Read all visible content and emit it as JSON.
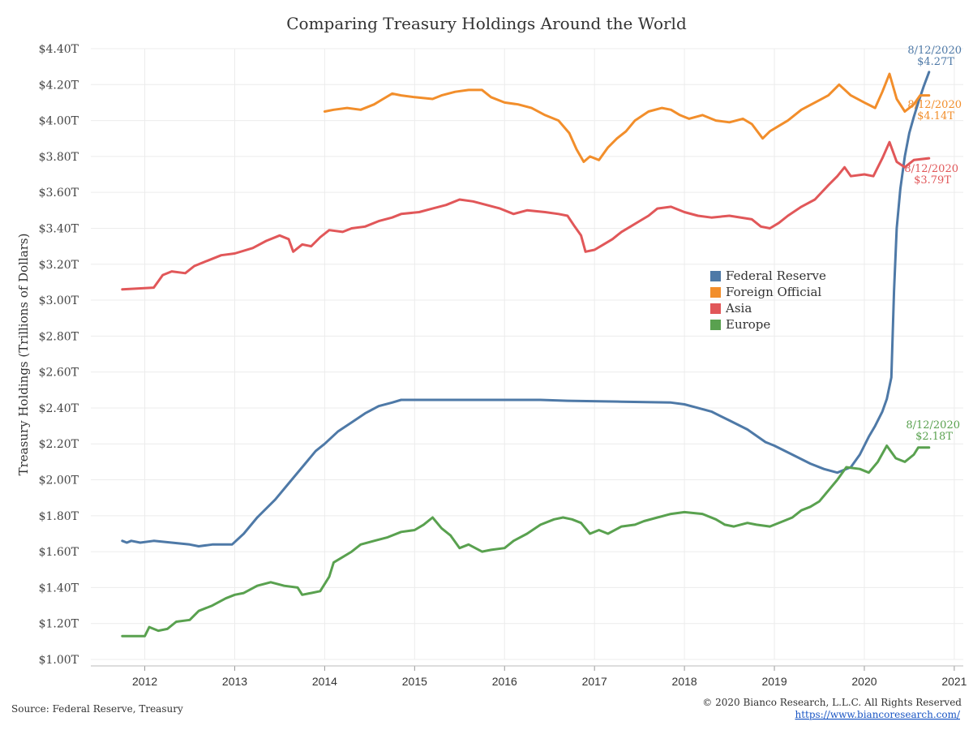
{
  "chart_data": {
    "type": "line",
    "title": "Comparing Treasury Holdings Around the World",
    "ylabel": "Treasury Holdings (Trillions of Dollars)",
    "xlabel": "",
    "xlim": [
      2011.4,
      2021.1
    ],
    "ylim": [
      1.0,
      4.4
    ],
    "grid": true,
    "legend_position": "center-right",
    "yticks": [
      1.0,
      1.2,
      1.4,
      1.6,
      1.8,
      2.0,
      2.2,
      2.4,
      2.6,
      2.8,
      3.0,
      3.2,
      3.4,
      3.6,
      3.8,
      4.0,
      4.2,
      4.4
    ],
    "ytick_labels": [
      "$1.00T",
      "$1.20T",
      "$1.40T",
      "$1.60T",
      "$1.80T",
      "$2.00T",
      "$2.20T",
      "$2.40T",
      "$2.60T",
      "$2.80T",
      "$3.00T",
      "$3.20T",
      "$3.40T",
      "$3.60T",
      "$3.80T",
      "$4.00T",
      "$4.20T",
      "$4.40T"
    ],
    "xticks": [
      2012,
      2013,
      2014,
      2015,
      2016,
      2017,
      2018,
      2019,
      2020,
      2021
    ],
    "xtick_labels": [
      "2012",
      "2013",
      "2014",
      "2015",
      "2016",
      "2017",
      "2018",
      "2019",
      "2020",
      "2021"
    ],
    "series": [
      {
        "name": "Federal Reserve",
        "color": "#4e79a7",
        "points": [
          [
            2011.75,
            1.66
          ],
          [
            2011.8,
            1.65
          ],
          [
            2011.85,
            1.66
          ],
          [
            2011.95,
            1.65
          ],
          [
            2012.1,
            1.66
          ],
          [
            2012.3,
            1.65
          ],
          [
            2012.5,
            1.64
          ],
          [
            2012.6,
            1.63
          ],
          [
            2012.75,
            1.64
          ],
          [
            2012.85,
            1.64
          ],
          [
            2012.97,
            1.64
          ],
          [
            2013.1,
            1.7
          ],
          [
            2013.25,
            1.79
          ],
          [
            2013.45,
            1.89
          ],
          [
            2013.6,
            1.98
          ],
          [
            2013.75,
            2.07
          ],
          [
            2013.9,
            2.16
          ],
          [
            2014.0,
            2.2
          ],
          [
            2014.15,
            2.27
          ],
          [
            2014.3,
            2.32
          ],
          [
            2014.45,
            2.37
          ],
          [
            2014.6,
            2.41
          ],
          [
            2014.75,
            2.43
          ],
          [
            2014.85,
            2.445
          ],
          [
            2015.5,
            2.445
          ],
          [
            2016.0,
            2.445
          ],
          [
            2016.4,
            2.445
          ],
          [
            2016.7,
            2.44
          ],
          [
            2017.3,
            2.435
          ],
          [
            2017.85,
            2.43
          ],
          [
            2018.0,
            2.42
          ],
          [
            2018.15,
            2.4
          ],
          [
            2018.3,
            2.38
          ],
          [
            2018.5,
            2.33
          ],
          [
            2018.7,
            2.28
          ],
          [
            2018.9,
            2.21
          ],
          [
            2019.0,
            2.19
          ],
          [
            2019.2,
            2.14
          ],
          [
            2019.4,
            2.09
          ],
          [
            2019.55,
            2.06
          ],
          [
            2019.7,
            2.04
          ],
          [
            2019.85,
            2.07
          ],
          [
            2019.95,
            2.14
          ],
          [
            2020.05,
            2.24
          ],
          [
            2020.12,
            2.3
          ],
          [
            2020.2,
            2.38
          ],
          [
            2020.25,
            2.45
          ],
          [
            2020.3,
            2.57
          ],
          [
            2020.33,
            3.05
          ],
          [
            2020.36,
            3.4
          ],
          [
            2020.4,
            3.62
          ],
          [
            2020.45,
            3.8
          ],
          [
            2020.5,
            3.93
          ],
          [
            2020.55,
            4.02
          ],
          [
            2020.6,
            4.1
          ],
          [
            2020.66,
            4.19
          ],
          [
            2020.72,
            4.27
          ]
        ]
      },
      {
        "name": "Foreign Official",
        "color": "#f28e2b",
        "points": [
          [
            2014.0,
            4.05
          ],
          [
            2014.1,
            4.06
          ],
          [
            2014.25,
            4.07
          ],
          [
            2014.4,
            4.06
          ],
          [
            2014.55,
            4.09
          ],
          [
            2014.65,
            4.12
          ],
          [
            2014.75,
            4.15
          ],
          [
            2014.85,
            4.14
          ],
          [
            2015.0,
            4.13
          ],
          [
            2015.2,
            4.12
          ],
          [
            2015.3,
            4.14
          ],
          [
            2015.45,
            4.16
          ],
          [
            2015.6,
            4.17
          ],
          [
            2015.75,
            4.17
          ],
          [
            2015.85,
            4.13
          ],
          [
            2016.0,
            4.1
          ],
          [
            2016.15,
            4.09
          ],
          [
            2016.3,
            4.07
          ],
          [
            2016.45,
            4.03
          ],
          [
            2016.6,
            4.0
          ],
          [
            2016.72,
            3.93
          ],
          [
            2016.8,
            3.84
          ],
          [
            2016.88,
            3.77
          ],
          [
            2016.95,
            3.8
          ],
          [
            2017.05,
            3.78
          ],
          [
            2017.15,
            3.85
          ],
          [
            2017.25,
            3.9
          ],
          [
            2017.35,
            3.94
          ],
          [
            2017.45,
            4.0
          ],
          [
            2017.6,
            4.05
          ],
          [
            2017.75,
            4.07
          ],
          [
            2017.85,
            4.06
          ],
          [
            2017.95,
            4.03
          ],
          [
            2018.05,
            4.01
          ],
          [
            2018.2,
            4.03
          ],
          [
            2018.35,
            4.0
          ],
          [
            2018.5,
            3.99
          ],
          [
            2018.65,
            4.01
          ],
          [
            2018.75,
            3.98
          ],
          [
            2018.87,
            3.9
          ],
          [
            2018.95,
            3.94
          ],
          [
            2019.05,
            3.97
          ],
          [
            2019.15,
            4.0
          ],
          [
            2019.3,
            4.06
          ],
          [
            2019.45,
            4.1
          ],
          [
            2019.6,
            4.14
          ],
          [
            2019.72,
            4.2
          ],
          [
            2019.85,
            4.14
          ],
          [
            2020.0,
            4.1
          ],
          [
            2020.12,
            4.07
          ],
          [
            2020.2,
            4.16
          ],
          [
            2020.28,
            4.26
          ],
          [
            2020.36,
            4.12
          ],
          [
            2020.45,
            4.05
          ],
          [
            2020.55,
            4.09
          ],
          [
            2020.62,
            4.14
          ],
          [
            2020.72,
            4.14
          ]
        ]
      },
      {
        "name": "Asia",
        "color": "#e15759",
        "points": [
          [
            2011.75,
            3.06
          ],
          [
            2012.1,
            3.07
          ],
          [
            2012.2,
            3.14
          ],
          [
            2012.3,
            3.16
          ],
          [
            2012.45,
            3.15
          ],
          [
            2012.55,
            3.19
          ],
          [
            2012.7,
            3.22
          ],
          [
            2012.85,
            3.25
          ],
          [
            2013.0,
            3.26
          ],
          [
            2013.2,
            3.29
          ],
          [
            2013.35,
            3.33
          ],
          [
            2013.5,
            3.36
          ],
          [
            2013.6,
            3.34
          ],
          [
            2013.65,
            3.27
          ],
          [
            2013.75,
            3.31
          ],
          [
            2013.85,
            3.3
          ],
          [
            2013.95,
            3.35
          ],
          [
            2014.05,
            3.39
          ],
          [
            2014.2,
            3.38
          ],
          [
            2014.3,
            3.4
          ],
          [
            2014.45,
            3.41
          ],
          [
            2014.6,
            3.44
          ],
          [
            2014.75,
            3.46
          ],
          [
            2014.85,
            3.48
          ],
          [
            2015.05,
            3.49
          ],
          [
            2015.2,
            3.51
          ],
          [
            2015.35,
            3.53
          ],
          [
            2015.5,
            3.56
          ],
          [
            2015.65,
            3.55
          ],
          [
            2015.8,
            3.53
          ],
          [
            2015.95,
            3.51
          ],
          [
            2016.1,
            3.48
          ],
          [
            2016.25,
            3.5
          ],
          [
            2016.45,
            3.49
          ],
          [
            2016.6,
            3.48
          ],
          [
            2016.7,
            3.47
          ],
          [
            2016.78,
            3.41
          ],
          [
            2016.85,
            3.36
          ],
          [
            2016.9,
            3.27
          ],
          [
            2017.0,
            3.28
          ],
          [
            2017.1,
            3.31
          ],
          [
            2017.2,
            3.34
          ],
          [
            2017.3,
            3.38
          ],
          [
            2017.4,
            3.41
          ],
          [
            2017.5,
            3.44
          ],
          [
            2017.6,
            3.47
          ],
          [
            2017.7,
            3.51
          ],
          [
            2017.85,
            3.52
          ],
          [
            2018.0,
            3.49
          ],
          [
            2018.15,
            3.47
          ],
          [
            2018.3,
            3.46
          ],
          [
            2018.5,
            3.47
          ],
          [
            2018.75,
            3.45
          ],
          [
            2018.85,
            3.41
          ],
          [
            2018.95,
            3.4
          ],
          [
            2019.05,
            3.43
          ],
          [
            2019.15,
            3.47
          ],
          [
            2019.3,
            3.52
          ],
          [
            2019.45,
            3.56
          ],
          [
            2019.6,
            3.64
          ],
          [
            2019.7,
            3.69
          ],
          [
            2019.78,
            3.74
          ],
          [
            2019.85,
            3.69
          ],
          [
            2020.0,
            3.7
          ],
          [
            2020.1,
            3.69
          ],
          [
            2020.2,
            3.79
          ],
          [
            2020.28,
            3.88
          ],
          [
            2020.36,
            3.77
          ],
          [
            2020.45,
            3.74
          ],
          [
            2020.55,
            3.78
          ],
          [
            2020.72,
            3.79
          ]
        ]
      },
      {
        "name": "Europe",
        "color": "#59a14f",
        "points": [
          [
            2011.75,
            1.13
          ],
          [
            2012.0,
            1.13
          ],
          [
            2012.05,
            1.18
          ],
          [
            2012.15,
            1.16
          ],
          [
            2012.25,
            1.17
          ],
          [
            2012.35,
            1.21
          ],
          [
            2012.5,
            1.22
          ],
          [
            2012.6,
            1.27
          ],
          [
            2012.75,
            1.3
          ],
          [
            2012.9,
            1.34
          ],
          [
            2013.0,
            1.36
          ],
          [
            2013.1,
            1.37
          ],
          [
            2013.25,
            1.41
          ],
          [
            2013.4,
            1.43
          ],
          [
            2013.55,
            1.41
          ],
          [
            2013.7,
            1.4
          ],
          [
            2013.75,
            1.36
          ],
          [
            2013.85,
            1.37
          ],
          [
            2013.95,
            1.38
          ],
          [
            2014.05,
            1.46
          ],
          [
            2014.1,
            1.54
          ],
          [
            2014.2,
            1.57
          ],
          [
            2014.3,
            1.6
          ],
          [
            2014.4,
            1.64
          ],
          [
            2014.55,
            1.66
          ],
          [
            2014.7,
            1.68
          ],
          [
            2014.85,
            1.71
          ],
          [
            2015.0,
            1.72
          ],
          [
            2015.1,
            1.75
          ],
          [
            2015.2,
            1.79
          ],
          [
            2015.3,
            1.73
          ],
          [
            2015.4,
            1.69
          ],
          [
            2015.5,
            1.62
          ],
          [
            2015.6,
            1.64
          ],
          [
            2015.75,
            1.6
          ],
          [
            2015.85,
            1.61
          ],
          [
            2016.0,
            1.62
          ],
          [
            2016.1,
            1.66
          ],
          [
            2016.25,
            1.7
          ],
          [
            2016.4,
            1.75
          ],
          [
            2016.55,
            1.78
          ],
          [
            2016.65,
            1.79
          ],
          [
            2016.75,
            1.78
          ],
          [
            2016.85,
            1.76
          ],
          [
            2016.95,
            1.7
          ],
          [
            2017.05,
            1.72
          ],
          [
            2017.15,
            1.7
          ],
          [
            2017.3,
            1.74
          ],
          [
            2017.45,
            1.75
          ],
          [
            2017.55,
            1.77
          ],
          [
            2017.7,
            1.79
          ],
          [
            2017.85,
            1.81
          ],
          [
            2018.0,
            1.82
          ],
          [
            2018.2,
            1.81
          ],
          [
            2018.35,
            1.78
          ],
          [
            2018.45,
            1.75
          ],
          [
            2018.55,
            1.74
          ],
          [
            2018.7,
            1.76
          ],
          [
            2018.8,
            1.75
          ],
          [
            2018.95,
            1.74
          ],
          [
            2019.1,
            1.77
          ],
          [
            2019.2,
            1.79
          ],
          [
            2019.3,
            1.83
          ],
          [
            2019.4,
            1.85
          ],
          [
            2019.5,
            1.88
          ],
          [
            2019.6,
            1.94
          ],
          [
            2019.7,
            2.0
          ],
          [
            2019.8,
            2.07
          ],
          [
            2019.95,
            2.06
          ],
          [
            2020.05,
            2.04
          ],
          [
            2020.15,
            2.1
          ],
          [
            2020.25,
            2.19
          ],
          [
            2020.35,
            2.12
          ],
          [
            2020.45,
            2.1
          ],
          [
            2020.55,
            2.14
          ],
          [
            2020.6,
            2.18
          ],
          [
            2020.72,
            2.18
          ]
        ]
      }
    ],
    "annotations": [
      {
        "series": "Federal Reserve",
        "date": "8/12/2020",
        "value": "$4.27T"
      },
      {
        "series": "Foreign Official",
        "date": "8/12/2020",
        "value": "$4.14T"
      },
      {
        "series": "Asia",
        "date": "8/12/2020",
        "value": "$3.79T"
      },
      {
        "series": "Europe",
        "date": "8/12/2020",
        "value": "$2.18T"
      }
    ]
  },
  "footer": {
    "source": "Source: Federal Reserve, Treasury",
    "copyright": "© 2020 Bianco Research, L.L.C. All Rights Reserved",
    "url": "https://www.biancoresearch.com/"
  }
}
